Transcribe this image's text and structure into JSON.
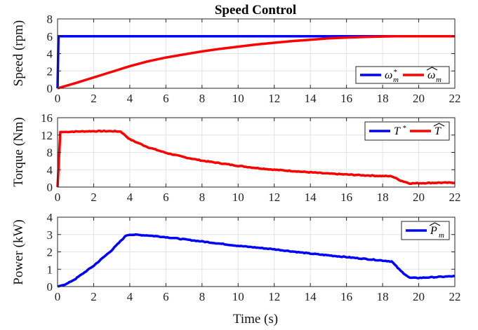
{
  "chart_data": [
    {
      "type": "line",
      "title": "Speed Control",
      "ylabel": "Speed (rpm)",
      "xlabel": "",
      "xlim": [
        0,
        22
      ],
      "ylim": [
        0,
        8
      ],
      "xticks": [
        0,
        2,
        4,
        6,
        8,
        10,
        12,
        14,
        16,
        18,
        20,
        22
      ],
      "yticks": [
        0,
        2,
        4,
        6,
        8
      ],
      "grid": true,
      "legend_placement": "bottom-right",
      "series": [
        {
          "name": "ω",
          "sup": "*",
          "sub": "m",
          "hat": false,
          "color": "#0000ff",
          "x": [
            0,
            0.05,
            22
          ],
          "y": [
            0,
            6,
            6
          ]
        },
        {
          "name": "ω",
          "sup": "",
          "sub": "m",
          "hat": true,
          "color": "#ff0000",
          "x": [
            0,
            1,
            2,
            3,
            4,
            5,
            6,
            7,
            8,
            9,
            10,
            11,
            12,
            13,
            14,
            15,
            16,
            17,
            18,
            18.7,
            19,
            20,
            22
          ],
          "y": [
            0,
            0.6,
            1.25,
            1.9,
            2.55,
            3.1,
            3.55,
            3.9,
            4.25,
            4.55,
            4.8,
            5.05,
            5.25,
            5.45,
            5.6,
            5.75,
            5.85,
            5.92,
            5.97,
            6.0,
            6.0,
            6.0,
            6.0
          ]
        }
      ]
    },
    {
      "type": "line",
      "title": "",
      "ylabel": "Torque (Nm)",
      "xlabel": "",
      "xlim": [
        0,
        22
      ],
      "ylim": [
        0,
        16
      ],
      "xticks": [
        0,
        2,
        4,
        6,
        8,
        10,
        12,
        14,
        16,
        18,
        20,
        22
      ],
      "yticks": [
        0,
        4,
        8,
        12,
        16
      ],
      "grid": true,
      "legend_placement": "top-right",
      "series": [
        {
          "name": "T",
          "sup": "*",
          "sub": "",
          "hat": false,
          "color": "#0000ff",
          "x": [],
          "y": []
        },
        {
          "name": "T",
          "sup": "",
          "sub": "",
          "hat": true,
          "color": "#ff0000",
          "noisy": true,
          "x": [
            0,
            0.15,
            0.3,
            1,
            2,
            3,
            3.5,
            4,
            5,
            6,
            7,
            8,
            9,
            10,
            11,
            12,
            13,
            14,
            15,
            16,
            17,
            18,
            18.5,
            19,
            19.5,
            20,
            21,
            22
          ],
          "y": [
            0,
            12.7,
            12.7,
            12.8,
            12.9,
            12.9,
            12.8,
            11.0,
            9.2,
            7.9,
            6.9,
            6.1,
            5.5,
            4.9,
            4.4,
            4.0,
            3.7,
            3.4,
            3.1,
            2.9,
            2.7,
            2.55,
            2.5,
            1.5,
            0.85,
            0.9,
            1.0,
            1.0
          ]
        }
      ]
    },
    {
      "type": "line",
      "title": "",
      "ylabel": "Power (kW)",
      "xlabel": "Time (s)",
      "xlim": [
        0,
        22
      ],
      "ylim": [
        0,
        4
      ],
      "xticks": [
        0,
        2,
        4,
        6,
        8,
        10,
        12,
        14,
        16,
        18,
        20,
        22
      ],
      "yticks": [
        0,
        1,
        2,
        3,
        4
      ],
      "grid": true,
      "legend_placement": "top-right",
      "series": [
        {
          "name": "P",
          "sup": "",
          "sub": "m",
          "hat": true,
          "color": "#0000ff",
          "noisy": true,
          "x": [
            0,
            0.5,
            1,
            2,
            3,
            3.8,
            4,
            5,
            6,
            8,
            10,
            12,
            14,
            16,
            18,
            18.5,
            19,
            19.5,
            20,
            21,
            22
          ],
          "y": [
            0,
            0.15,
            0.45,
            1.2,
            2.1,
            2.95,
            3.0,
            2.95,
            2.85,
            2.6,
            2.35,
            2.15,
            1.9,
            1.7,
            1.5,
            1.45,
            0.9,
            0.5,
            0.5,
            0.55,
            0.6
          ]
        }
      ]
    }
  ]
}
